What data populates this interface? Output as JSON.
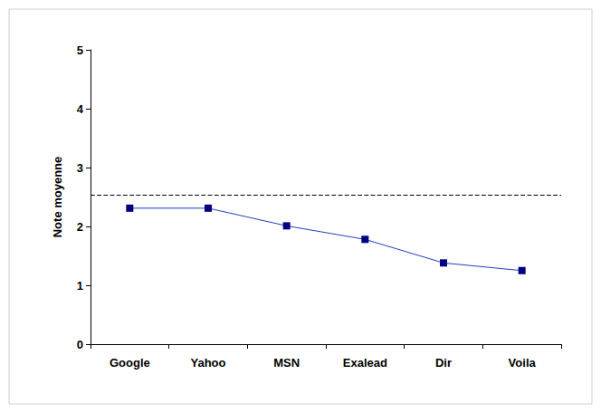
{
  "chart_data": {
    "type": "line",
    "y_label": "Note moyenne",
    "categories": [
      "Google",
      "Yahoo",
      "MSN",
      "Exalead",
      "Dir",
      "Voila"
    ],
    "values": [
      2.31,
      2.31,
      2.01,
      1.78,
      1.38,
      1.25
    ],
    "color": "#1f3fbf",
    "marker": "square",
    "line_style": "solid",
    "reference_line": 2.54,
    "ylim": [
      0,
      5
    ],
    "yticks": [
      0,
      1,
      2,
      3,
      4,
      5
    ],
    "grid": false
  }
}
